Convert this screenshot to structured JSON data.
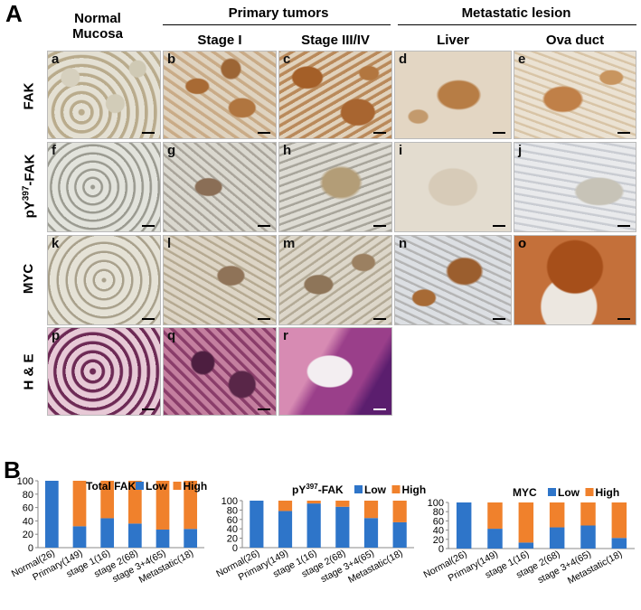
{
  "panel_a_letter": "A",
  "panel_b_letter": "B",
  "headers": {
    "normal_mucosa": "Normal\nMucosa",
    "primary_tumors": "Primary tumors",
    "metastatic_lesion": "Metastatic lesion",
    "stage1": "Stage I",
    "stage34": "Stage III/IV",
    "liver": "Liver",
    "ova_duct": "Ova duct"
  },
  "rows": {
    "fak": "FAK",
    "pfak_prefix": "pY",
    "pfak_sup": "397",
    "pfak_suffix": "-FAK",
    "myc": "MYC",
    "he": "H & E"
  },
  "tiles": [
    {
      "label": "a"
    },
    {
      "label": "b"
    },
    {
      "label": "c"
    },
    {
      "label": "d"
    },
    {
      "label": "e"
    },
    {
      "label": "f"
    },
    {
      "label": "g"
    },
    {
      "label": "h"
    },
    {
      "label": "i"
    },
    {
      "label": "j"
    },
    {
      "label": "k"
    },
    {
      "label": "l"
    },
    {
      "label": "m"
    },
    {
      "label": "n"
    },
    {
      "label": "o"
    },
    {
      "label": "p"
    },
    {
      "label": "q"
    },
    {
      "label": "r"
    }
  ],
  "colors": {
    "low": "#2e75c9",
    "high": "#f0812c"
  },
  "chart_data": [
    {
      "type": "bar",
      "stacked": true,
      "title": "Total FAK",
      "categories": [
        "Normal(26)",
        "Primary(149)",
        "stage 1(16)",
        "stage 2(68)",
        "stage 3+4(65)",
        "Metastatic(18)"
      ],
      "series": [
        {
          "name": "Low",
          "values": [
            100,
            32,
            44,
            36,
            27,
            28
          ]
        },
        {
          "name": "High",
          "values": [
            0,
            68,
            56,
            64,
            73,
            72
          ]
        }
      ],
      "ylim": [
        0,
        100
      ],
      "yticks": [
        0,
        20,
        40,
        60,
        80,
        100
      ]
    },
    {
      "type": "bar",
      "stacked": true,
      "title": "pY397-FAK",
      "title_parts": {
        "prefix": "pY",
        "sup": "397",
        "suffix": "-FAK"
      },
      "categories": [
        "Normal(26)",
        "Primary(149)",
        "stage 1(16)",
        "stage 2(68)",
        "stage 3+4(65)",
        "Metastatic(18)"
      ],
      "series": [
        {
          "name": "Low",
          "values": [
            100,
            78,
            94,
            87,
            63,
            54
          ]
        },
        {
          "name": "High",
          "values": [
            0,
            22,
            6,
            13,
            37,
            46
          ]
        }
      ],
      "ylim": [
        0,
        100
      ],
      "yticks": [
        0,
        20,
        40,
        60,
        80,
        100
      ]
    },
    {
      "type": "bar",
      "stacked": true,
      "title": "MYC",
      "categories": [
        "Normal(26)",
        "Primary(149)",
        "stage 1(16)",
        "stage 2(68)",
        "stage 3+4(65)",
        "Metastatic(18)"
      ],
      "series": [
        {
          "name": "Low",
          "values": [
            100,
            43,
            13,
            46,
            50,
            23
          ]
        },
        {
          "name": "High",
          "values": [
            0,
            57,
            87,
            54,
            50,
            77
          ]
        }
      ],
      "ylim": [
        0,
        100
      ],
      "yticks": [
        0,
        20,
        40,
        60,
        80,
        100
      ]
    }
  ]
}
